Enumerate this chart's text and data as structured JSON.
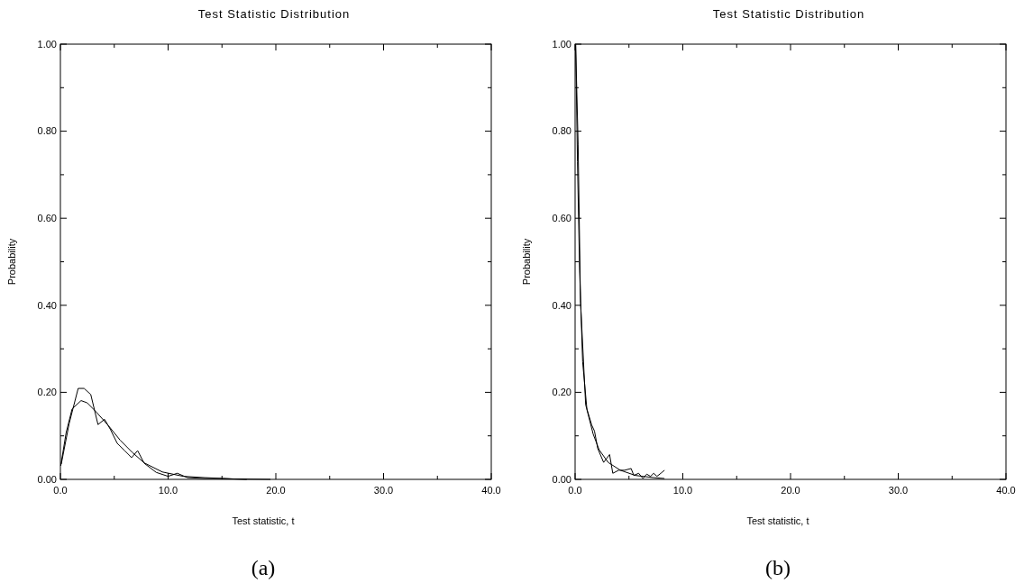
{
  "chart_data": [
    {
      "type": "line",
      "title": "Test Statistic Distribution",
      "xlabel": "Test statistic, t",
      "ylabel": "Probability",
      "annotations": [
        "(a)"
      ],
      "xlim": [
        0,
        40
      ],
      "ylim": [
        0,
        1
      ],
      "xticks": [
        {
          "value": 0,
          "label": "0.0"
        },
        {
          "value": 10,
          "label": "10.0"
        },
        {
          "value": 20,
          "label": "20.0"
        },
        {
          "value": 30,
          "label": "30.0"
        },
        {
          "value": 40,
          "label": "40.0"
        }
      ],
      "yticks": [
        {
          "value": 0,
          "label": "0.00"
        },
        {
          "value": 0.2,
          "label": "0.20"
        },
        {
          "value": 0.4,
          "label": "0.40"
        },
        {
          "value": 0.6,
          "label": "0.60"
        },
        {
          "value": 0.8,
          "label": "0.80"
        },
        {
          "value": 1,
          "label": "1.00"
        }
      ],
      "grid": false,
      "series": [
        {
          "color": "#000000",
          "x": [
            0.08,
            0.81,
            1.65,
            2.2,
            2.82,
            3.49,
            4.1,
            4.66,
            5.27,
            5.97,
            6.61,
            7.17,
            7.78,
            8.9,
            10.0,
            10.85,
            11.8,
            13.3,
            15,
            17.3
          ],
          "values": [
            0.035,
            0.128,
            0.209,
            0.209,
            0.195,
            0.126,
            0.138,
            0.114,
            0.083,
            0.066,
            0.05,
            0.066,
            0.037,
            0.016,
            0.007,
            0.014,
            0.004,
            0.002,
            0.002,
            0
          ]
        },
        {
          "color": "#000000",
          "x": [
            0.03,
            0.53,
            1.09,
            1.92,
            2.48,
            3.32,
            4.44,
            5.55,
            6.67,
            7.78,
            9.46,
            11.4,
            13.4,
            16,
            19.5
          ],
          "values": [
            0.031,
            0.107,
            0.162,
            0.181,
            0.176,
            0.155,
            0.124,
            0.09,
            0.062,
            0.038,
            0.017,
            0.007,
            0.004,
            0.001,
            0
          ]
        }
      ]
    },
    {
      "type": "line",
      "title": "Test Statistic Distribution",
      "xlabel": "Test statistic, t",
      "ylabel": "Probability",
      "annotations": [
        "(b)"
      ],
      "xlim": [
        0,
        40
      ],
      "ylim": [
        0,
        1
      ],
      "xticks": [
        {
          "value": 0,
          "label": "0.0"
        },
        {
          "value": 10,
          "label": "10.0"
        },
        {
          "value": 20,
          "label": "20.0"
        },
        {
          "value": 30,
          "label": "30.0"
        },
        {
          "value": 40,
          "label": "40.0"
        }
      ],
      "yticks": [
        {
          "value": 0,
          "label": "0.00"
        },
        {
          "value": 0.2,
          "label": "0.20"
        },
        {
          "value": 0.4,
          "label": "0.40"
        },
        {
          "value": 0.6,
          "label": "0.60"
        },
        {
          "value": 0.8,
          "label": "0.80"
        },
        {
          "value": 1,
          "label": "1.00"
        }
      ],
      "grid": false,
      "series": [
        {
          "color": "#000000",
          "x": [
            0.05,
            0.28,
            0.5,
            0.98,
            1.54,
            1.8,
            2.1,
            2.65,
            3.2,
            3.5,
            4.05,
            4.6,
            5.2,
            5.45,
            5.9,
            6.3,
            6.65,
            7.0,
            7.3,
            7.6,
            7.96,
            8.3
          ],
          "values": [
            1.0,
            0.77,
            0.41,
            0.171,
            0.125,
            0.111,
            0.071,
            0.039,
            0.057,
            0.014,
            0.021,
            0.021,
            0.025,
            0.009,
            0.014,
            0.002,
            0.012,
            0.007,
            0.014,
            0.007,
            0.014,
            0.021
          ]
        },
        {
          "color": "#000000",
          "x": [
            0.05,
            0.22,
            0.42,
            0.7,
            1.1,
            1.68,
            2.23,
            3.07,
            4.2,
            5.6,
            7.3,
            8.3
          ],
          "values": [
            1.0,
            0.73,
            0.48,
            0.27,
            0.16,
            0.104,
            0.068,
            0.039,
            0.021,
            0.009,
            0.004,
            0.002
          ]
        }
      ]
    }
  ]
}
